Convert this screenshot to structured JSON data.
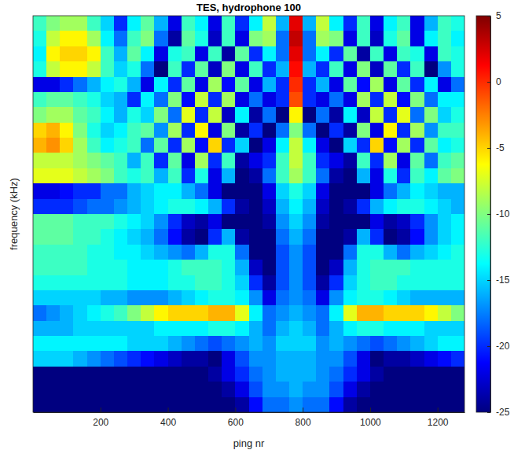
{
  "chart_data": {
    "type": "heatmap",
    "title": "TES, hydrophone 100",
    "x_label": "ping nr",
    "y_label": "frequency (kHz)",
    "xlim": [
      0,
      1280
    ],
    "xticks": [
      200,
      400,
      600,
      800,
      1000,
      1200
    ],
    "tick_labels": "x",
    "x": [
      20,
      60,
      100,
      140,
      180,
      220,
      260,
      300,
      340,
      380,
      420,
      460,
      500,
      540,
      580,
      620,
      660,
      700,
      740,
      780,
      820,
      860,
      900,
      940,
      980,
      1020,
      1060,
      1100,
      1140,
      1180,
      1220,
      1260
    ],
    "z": [
      [
        -12,
        -10,
        -9,
        -9,
        -12,
        -15,
        -20,
        -14,
        -11,
        -16,
        -22,
        -12,
        -14,
        -22,
        -12,
        -20,
        -14,
        -8,
        -16,
        2,
        -16,
        -8,
        -14,
        -20,
        -12,
        -22,
        -14,
        -12,
        -22,
        -16,
        -12,
        -13
      ],
      [
        -13,
        -8,
        -6,
        -6,
        -9,
        -14,
        -18,
        -12,
        -10,
        -18,
        -24,
        -11,
        -13,
        -23,
        -12,
        -22,
        -10,
        -9,
        -18,
        3,
        -18,
        -9,
        -10,
        -22,
        -12,
        -23,
        -13,
        -11,
        -22,
        -14,
        -12,
        -14
      ],
      [
        -14,
        -6,
        -5,
        -5,
        -6,
        -12,
        -16,
        -11,
        -14,
        -22,
        -13,
        -12,
        -22,
        -12,
        -24,
        -11,
        -20,
        -14,
        -18,
        2,
        -18,
        -14,
        -20,
        -11,
        -24,
        -12,
        -22,
        -12,
        -13,
        -22,
        -12,
        -13
      ],
      [
        -13,
        -8,
        -6,
        -6,
        -8,
        -12,
        -15,
        -13,
        -18,
        -25,
        -12,
        -20,
        -11,
        -23,
        -10,
        -22,
        -12,
        -20,
        -16,
        1,
        -16,
        -20,
        -12,
        -22,
        -10,
        -23,
        -11,
        -20,
        -12,
        -25,
        -17,
        -13
      ],
      [
        -22,
        -22,
        -20,
        -18,
        -16,
        -14,
        -13,
        -16,
        -22,
        -14,
        -20,
        -11,
        -22,
        -9,
        -21,
        -11,
        -22,
        -16,
        -20,
        0,
        -20,
        -16,
        -22,
        -11,
        -21,
        -9,
        -22,
        -11,
        -20,
        -14,
        -22,
        -18
      ],
      [
        -12,
        -11,
        -11,
        -12,
        -13,
        -15,
        -16,
        -20,
        -14,
        -18,
        -10,
        -21,
        -8,
        -20,
        -9,
        -22,
        -18,
        -22,
        -20,
        -1,
        -20,
        -22,
        -18,
        -22,
        -9,
        -20,
        -8,
        -21,
        -10,
        -18,
        -14,
        -14
      ],
      [
        -10,
        -9,
        -9,
        -11,
        -12,
        -14,
        -16,
        -13,
        -15,
        -10,
        -18,
        -7,
        -20,
        -8,
        -23,
        -14,
        -24,
        -18,
        -25,
        -6,
        -25,
        -18,
        -24,
        -14,
        -23,
        -8,
        -20,
        -7,
        -18,
        -10,
        -15,
        -13
      ],
      [
        -5,
        -4,
        -6,
        -10,
        -13,
        -15,
        -14,
        -12,
        -11,
        -17,
        -9,
        -20,
        -6,
        -22,
        -10,
        -24,
        -20,
        -25,
        -18,
        -10,
        -18,
        -25,
        -20,
        -24,
        -10,
        -22,
        -6,
        -20,
        -9,
        -17,
        -12,
        -12
      ],
      [
        -4,
        -3,
        -5,
        -9,
        -12,
        -14,
        -13,
        -12,
        -18,
        -11,
        -20,
        -9,
        -21,
        -5,
        -20,
        -15,
        -25,
        -22,
        -14,
        -8,
        -14,
        -22,
        -25,
        -15,
        -20,
        -5,
        -21,
        -9,
        -20,
        -11,
        -14,
        -13
      ],
      [
        -8,
        -8,
        -8,
        -9,
        -10,
        -11,
        -12,
        -16,
        -12,
        -20,
        -11,
        -22,
        -9,
        -20,
        -12,
        -24,
        -22,
        -20,
        -12,
        -8,
        -12,
        -20,
        -22,
        -24,
        -12,
        -20,
        -9,
        -22,
        -11,
        -18,
        -12,
        -11
      ],
      [
        -7,
        -7,
        -7,
        -8,
        -9,
        -10,
        -12,
        -13,
        -12,
        -16,
        -12,
        -20,
        -13,
        -22,
        -16,
        -25,
        -24,
        -18,
        -12,
        -9,
        -12,
        -18,
        -24,
        -25,
        -16,
        -22,
        -13,
        -20,
        -12,
        -14,
        -11,
        -10
      ],
      [
        -22,
        -22,
        -21,
        -20,
        -20,
        -18,
        -18,
        -16,
        -15,
        -14,
        -14,
        -16,
        -18,
        -22,
        -25,
        -25,
        -25,
        -22,
        -15,
        -13,
        -15,
        -22,
        -25,
        -25,
        -25,
        -22,
        -18,
        -16,
        -14,
        -15,
        -16,
        -16
      ],
      [
        -20,
        -20,
        -20,
        -19,
        -18,
        -18,
        -17,
        -16,
        -15,
        -14,
        -13,
        -13,
        -14,
        -16,
        -20,
        -24,
        -25,
        -23,
        -16,
        -14,
        -16,
        -23,
        -25,
        -24,
        -20,
        -16,
        -14,
        -13,
        -13,
        -14,
        -15,
        -16
      ],
      [
        -11,
        -11,
        -11,
        -12,
        -12,
        -12,
        -13,
        -14,
        -15,
        -17,
        -20,
        -23,
        -24,
        -22,
        -25,
        -25,
        -25,
        -24,
        -17,
        -15,
        -17,
        -24,
        -25,
        -25,
        -25,
        -22,
        -24,
        -23,
        -20,
        -17,
        -15,
        -14
      ],
      [
        -11,
        -11,
        -11,
        -12,
        -12,
        -13,
        -14,
        -15,
        -16,
        -18,
        -21,
        -24,
        -25,
        -20,
        -16,
        -24,
        -25,
        -25,
        -18,
        -16,
        -18,
        -25,
        -25,
        -24,
        -16,
        -20,
        -25,
        -24,
        -21,
        -17,
        -15,
        -14
      ],
      [
        -12,
        -12,
        -12,
        -12,
        -13,
        -13,
        -14,
        -14,
        -15,
        -16,
        -17,
        -18,
        -16,
        -13,
        -13,
        -18,
        -25,
        -25,
        -19,
        -17,
        -19,
        -25,
        -25,
        -18,
        -13,
        -13,
        -16,
        -18,
        -16,
        -15,
        -14,
        -13
      ],
      [
        -12,
        -12,
        -12,
        -12,
        -13,
        -13,
        -13,
        -14,
        -14,
        -14,
        -13,
        -12,
        -12,
        -12,
        -13,
        -16,
        -23,
        -25,
        -19,
        -17,
        -19,
        -25,
        -23,
        -16,
        -13,
        -12,
        -12,
        -12,
        -13,
        -13,
        -13,
        -13
      ],
      [
        -13,
        -13,
        -13,
        -13,
        -13,
        -13,
        -13,
        -14,
        -14,
        -14,
        -13,
        -13,
        -12,
        -12,
        -13,
        -15,
        -20,
        -24,
        -19,
        -17,
        -19,
        -24,
        -20,
        -15,
        -13,
        -12,
        -12,
        -13,
        -13,
        -13,
        -13,
        -13
      ],
      [
        -15,
        -15,
        -15,
        -15,
        -15,
        -16,
        -16,
        -17,
        -17,
        -17,
        -16,
        -15,
        -14,
        -13,
        -13,
        -14,
        -17,
        -22,
        -18,
        -17,
        -18,
        -22,
        -17,
        -14,
        -13,
        -13,
        -14,
        -15,
        -16,
        -16,
        -16,
        -16
      ],
      [
        -18,
        -17,
        -16,
        -15,
        -14,
        -13,
        -12,
        -10,
        -8,
        -6,
        -5,
        -5,
        -5,
        -4,
        -4,
        -7,
        -14,
        -18,
        -17,
        -16,
        -17,
        -18,
        -14,
        -7,
        -4,
        -4,
        -5,
        -5,
        -5,
        -6,
        -8,
        -10
      ],
      [
        -16,
        -16,
        -16,
        -15,
        -15,
        -15,
        -15,
        -15,
        -15,
        -14,
        -14,
        -14,
        -14,
        -13,
        -13,
        -14,
        -16,
        -18,
        -16,
        -15,
        -16,
        -18,
        -16,
        -14,
        -13,
        -13,
        -14,
        -14,
        -14,
        -15,
        -15,
        -15
      ],
      [
        -14,
        -14,
        -14,
        -14,
        -14,
        -14,
        -14,
        -15,
        -15,
        -15,
        -16,
        -17,
        -18,
        -19,
        -18,
        -17,
        -16,
        -17,
        -15,
        -15,
        -15,
        -17,
        -16,
        -17,
        -18,
        -19,
        -18,
        -17,
        -16,
        -15,
        -14,
        -14
      ],
      [
        -15,
        -15,
        -15,
        -16,
        -17,
        -18,
        -19,
        -20,
        -21,
        -22,
        -23,
        -24,
        -24,
        -25,
        -22,
        -19,
        -17,
        -17,
        -16,
        -16,
        -16,
        -17,
        -17,
        -19,
        -22,
        -25,
        -24,
        -24,
        -23,
        -22,
        -21,
        -20
      ],
      [
        -25,
        -25,
        -25,
        -25,
        -25,
        -25,
        -25,
        -25,
        -25,
        -25,
        -25,
        -25,
        -25,
        -24,
        -22,
        -20,
        -18,
        -17,
        -16,
        -16,
        -16,
        -17,
        -18,
        -20,
        -22,
        -24,
        -25,
        -25,
        -25,
        -25,
        -25,
        -25
      ],
      [
        -25,
        -25,
        -25,
        -25,
        -25,
        -25,
        -25,
        -25,
        -25,
        -25,
        -25,
        -25,
        -25,
        -25,
        -24,
        -22,
        -19,
        -17,
        -17,
        -16,
        -17,
        -17,
        -19,
        -22,
        -24,
        -25,
        -25,
        -25,
        -25,
        -25,
        -25,
        -25
      ],
      [
        -25,
        -25,
        -25,
        -25,
        -25,
        -25,
        -25,
        -25,
        -25,
        -25,
        -25,
        -25,
        -25,
        -25,
        -25,
        -24,
        -21,
        -18,
        -18,
        -17,
        -18,
        -18,
        -21,
        -24,
        -25,
        -25,
        -25,
        -25,
        -25,
        -25,
        -25,
        -25
      ]
    ],
    "colorbar": {
      "range": [
        -25,
        5
      ],
      "ticks": [
        -25,
        -20,
        -15,
        -10,
        -5,
        0,
        5
      ]
    }
  }
}
